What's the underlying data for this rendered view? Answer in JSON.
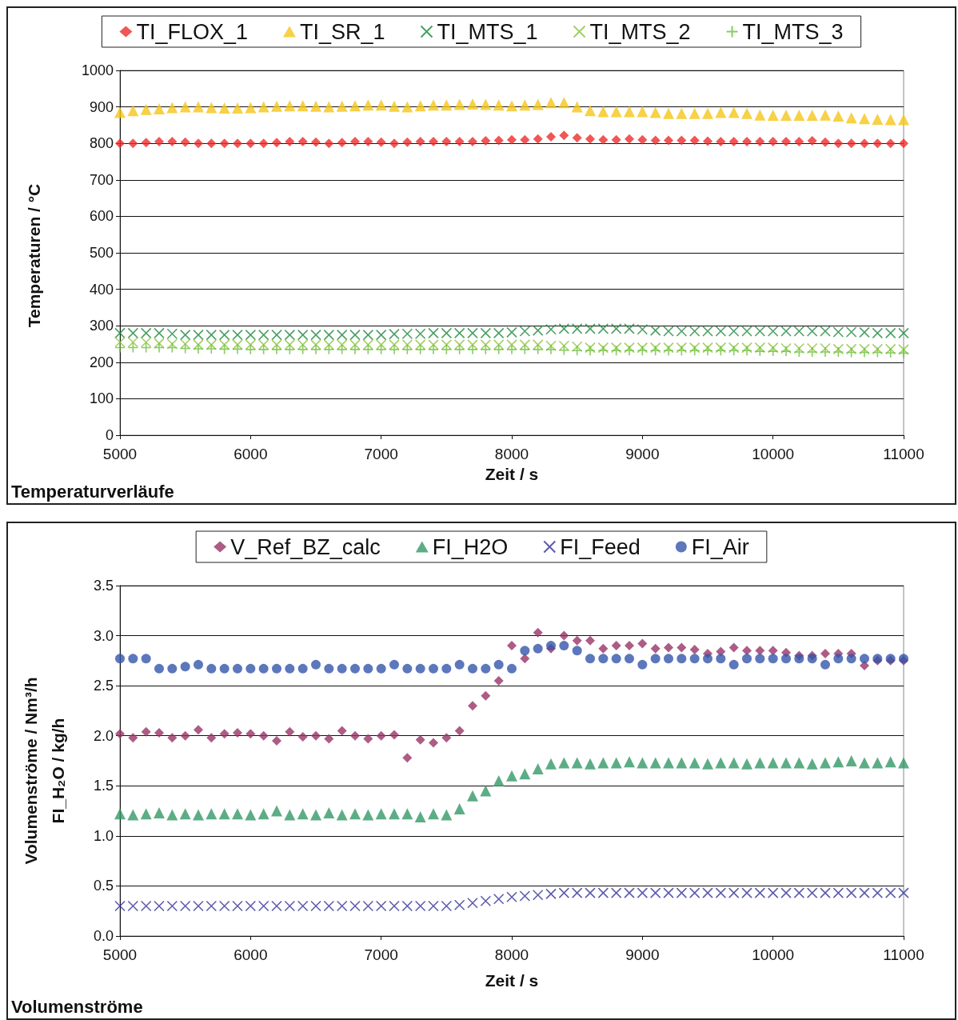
{
  "chart_data": [
    {
      "type": "scatter",
      "xlabel": "Zeit / s",
      "ylabel": "Temperaturen / °C",
      "annotations": [
        "Temperaturverläufe"
      ],
      "legend": "top",
      "grid": "y",
      "xlim": [
        5000,
        11000
      ],
      "xticks": [
        5000,
        6000,
        7000,
        8000,
        9000,
        10000,
        11000
      ],
      "ylim": [
        0,
        1000
      ],
      "yticks": [
        0,
        100,
        200,
        300,
        400,
        500,
        600,
        700,
        800,
        900,
        1000
      ],
      "x": [
        5000,
        5100,
        5200,
        5300,
        5400,
        5500,
        5600,
        5700,
        5800,
        5900,
        6000,
        6100,
        6200,
        6300,
        6400,
        6500,
        6600,
        6700,
        6800,
        6900,
        7000,
        7100,
        7200,
        7300,
        7400,
        7500,
        7600,
        7700,
        7800,
        7900,
        8000,
        8100,
        8200,
        8300,
        8400,
        8500,
        8600,
        8700,
        8800,
        8900,
        9000,
        9100,
        9200,
        9300,
        9400,
        9500,
        9600,
        9700,
        9800,
        9900,
        10000,
        10100,
        10200,
        10300,
        10400,
        10500,
        10600,
        10700,
        10800,
        10900,
        11000
      ],
      "series": [
        {
          "name": "TI_FLOX_1",
          "color": "#ee2c2c",
          "marker": "diamond",
          "values": [
            800,
            800,
            802,
            805,
            805,
            803,
            800,
            800,
            800,
            800,
            800,
            800,
            802,
            805,
            805,
            803,
            800,
            802,
            805,
            805,
            803,
            800,
            803,
            805,
            805,
            805,
            805,
            805,
            807,
            808,
            810,
            810,
            812,
            818,
            822,
            815,
            812,
            810,
            810,
            812,
            810,
            808,
            808,
            808,
            808,
            806,
            805,
            805,
            805,
            805,
            805,
            805,
            805,
            807,
            803,
            800,
            800,
            800,
            800,
            800,
            800
          ]
        },
        {
          "name": "TI_SR_1",
          "color": "#f5c518",
          "marker": "triangle",
          "values": [
            885,
            890,
            893,
            895,
            898,
            900,
            900,
            898,
            897,
            897,
            898,
            900,
            902,
            903,
            903,
            902,
            900,
            902,
            903,
            905,
            905,
            902,
            900,
            903,
            905,
            905,
            907,
            908,
            907,
            905,
            903,
            905,
            907,
            912,
            912,
            900,
            890,
            887,
            887,
            887,
            887,
            885,
            882,
            882,
            882,
            882,
            885,
            885,
            882,
            878,
            877,
            877,
            877,
            877,
            878,
            875,
            870,
            868,
            866,
            865,
            865
          ]
        },
        {
          "name": "TI_MTS_1",
          "color": "#1e8a3c",
          "marker": "cross",
          "values": [
            280,
            280,
            280,
            280,
            278,
            275,
            275,
            275,
            275,
            275,
            275,
            275,
            275,
            275,
            275,
            275,
            275,
            275,
            275,
            275,
            275,
            277,
            278,
            278,
            280,
            280,
            280,
            280,
            280,
            280,
            282,
            285,
            287,
            290,
            292,
            292,
            292,
            292,
            292,
            292,
            290,
            287,
            285,
            285,
            285,
            285,
            285,
            285,
            285,
            285,
            285,
            285,
            285,
            285,
            285,
            283,
            283,
            282,
            280,
            280,
            280
          ]
        },
        {
          "name": "TI_MTS_2",
          "color": "#8cc43c",
          "marker": "cross",
          "values": [
            255,
            255,
            255,
            252,
            250,
            250,
            248,
            248,
            248,
            248,
            248,
            248,
            248,
            248,
            248,
            248,
            248,
            248,
            248,
            248,
            248,
            248,
            248,
            248,
            248,
            248,
            248,
            248,
            248,
            248,
            248,
            248,
            248,
            245,
            245,
            243,
            240,
            240,
            240,
            240,
            240,
            240,
            240,
            240,
            240,
            240,
            240,
            240,
            240,
            240,
            240,
            238,
            238,
            238,
            238,
            236,
            236,
            236,
            236,
            236,
            235
          ]
        },
        {
          "name": "TI_MTS_3",
          "color": "#6cbf3c",
          "marker": "plus",
          "values": [
            240,
            240,
            240,
            240,
            240,
            238,
            237,
            237,
            236,
            236,
            235,
            235,
            235,
            235,
            235,
            235,
            235,
            235,
            235,
            235,
            235,
            235,
            235,
            235,
            235,
            235,
            235,
            235,
            235,
            235,
            235,
            235,
            235,
            235,
            233,
            232,
            232,
            232,
            232,
            232,
            232,
            232,
            232,
            232,
            232,
            232,
            232,
            232,
            232,
            230,
            230,
            230,
            228,
            228,
            228,
            228,
            227,
            227,
            227,
            226,
            225
          ]
        }
      ]
    },
    {
      "type": "scatter",
      "xlabel": "Zeit / s",
      "ylabel": "Volumenströme / Nm³/h\nFI_H₂O / kg/h",
      "annotations": [
        "Volumenströme"
      ],
      "legend": "top",
      "grid": "y",
      "xlim": [
        5000,
        11000
      ],
      "xticks": [
        5000,
        6000,
        7000,
        8000,
        9000,
        10000,
        11000
      ],
      "ylim": [
        0,
        3.5
      ],
      "yticks": [
        {
          "value": 0,
          "label": "0.0"
        },
        {
          "value": 0.5,
          "label": "0.5"
        },
        {
          "value": 1,
          "label": "1.0"
        },
        {
          "value": 1.5,
          "label": "1.5"
        },
        {
          "value": 2,
          "label": "2.0"
        },
        {
          "value": 2.5,
          "label": "2.5"
        },
        {
          "value": 3,
          "label": "3.0"
        },
        {
          "value": 3.5,
          "label": "3.5"
        }
      ],
      "x": [
        5000,
        5100,
        5200,
        5300,
        5400,
        5500,
        5600,
        5700,
        5800,
        5900,
        6000,
        6100,
        6200,
        6300,
        6400,
        6500,
        6600,
        6700,
        6800,
        6900,
        7000,
        7100,
        7200,
        7300,
        7400,
        7500,
        7600,
        7700,
        7800,
        7900,
        8000,
        8100,
        8200,
        8300,
        8400,
        8500,
        8600,
        8700,
        8800,
        8900,
        9000,
        9100,
        9200,
        9300,
        9400,
        9500,
        9600,
        9700,
        9800,
        9900,
        10000,
        10100,
        10200,
        10300,
        10400,
        10500,
        10600,
        10700,
        10800,
        10900,
        11000
      ],
      "series": [
        {
          "name": "V_Ref_BZ_calc",
          "color": "#993366",
          "marker": "diamond",
          "values": [
            2.02,
            1.98,
            2.04,
            2.03,
            1.98,
            2.0,
            2.06,
            1.98,
            2.02,
            2.03,
            2.02,
            2.0,
            1.95,
            2.04,
            1.99,
            2.0,
            1.97,
            2.05,
            2.0,
            1.97,
            2.0,
            2.01,
            1.78,
            1.96,
            1.93,
            1.98,
            2.05,
            2.3,
            2.4,
            2.55,
            2.9,
            2.77,
            3.03,
            2.87,
            3.0,
            2.95,
            2.95,
            2.87,
            2.9,
            2.9,
            2.92,
            2.87,
            2.88,
            2.88,
            2.86,
            2.82,
            2.84,
            2.88,
            2.85,
            2.85,
            2.85,
            2.83,
            2.8,
            2.8,
            2.82,
            2.82,
            2.82,
            2.7,
            2.75,
            2.75,
            2.75
          ]
        },
        {
          "name": "FI_H2O",
          "color": "#339966",
          "marker": "triangle",
          "values": [
            1.22,
            1.21,
            1.22,
            1.23,
            1.21,
            1.22,
            1.21,
            1.22,
            1.22,
            1.22,
            1.21,
            1.22,
            1.25,
            1.21,
            1.22,
            1.21,
            1.23,
            1.21,
            1.22,
            1.21,
            1.22,
            1.22,
            1.22,
            1.19,
            1.22,
            1.21,
            1.27,
            1.4,
            1.45,
            1.55,
            1.6,
            1.62,
            1.67,
            1.72,
            1.73,
            1.73,
            1.72,
            1.73,
            1.73,
            1.74,
            1.73,
            1.73,
            1.73,
            1.73,
            1.73,
            1.72,
            1.73,
            1.73,
            1.72,
            1.73,
            1.73,
            1.73,
            1.73,
            1.72,
            1.73,
            1.74,
            1.75,
            1.73,
            1.73,
            1.74,
            1.73
          ]
        },
        {
          "name": "FI_Feed",
          "color": "#333399",
          "marker": "cross",
          "values": [
            0.3,
            0.3,
            0.3,
            0.3,
            0.3,
            0.3,
            0.3,
            0.3,
            0.3,
            0.3,
            0.3,
            0.3,
            0.3,
            0.3,
            0.3,
            0.3,
            0.3,
            0.3,
            0.3,
            0.3,
            0.3,
            0.3,
            0.3,
            0.3,
            0.3,
            0.3,
            0.31,
            0.33,
            0.35,
            0.37,
            0.39,
            0.4,
            0.41,
            0.42,
            0.43,
            0.43,
            0.43,
            0.43,
            0.43,
            0.43,
            0.43,
            0.43,
            0.43,
            0.43,
            0.43,
            0.43,
            0.43,
            0.43,
            0.43,
            0.43,
            0.43,
            0.43,
            0.43,
            0.43,
            0.43,
            0.43,
            0.43,
            0.43,
            0.43,
            0.43,
            0.43
          ]
        },
        {
          "name": "FI_Air",
          "color": "#3355aa",
          "marker": "circle",
          "values": [
            2.77,
            2.77,
            2.77,
            2.67,
            2.67,
            2.69,
            2.71,
            2.67,
            2.67,
            2.67,
            2.67,
            2.67,
            2.67,
            2.67,
            2.67,
            2.71,
            2.67,
            2.67,
            2.67,
            2.67,
            2.67,
            2.71,
            2.67,
            2.67,
            2.67,
            2.67,
            2.71,
            2.67,
            2.67,
            2.71,
            2.67,
            2.85,
            2.87,
            2.9,
            2.9,
            2.85,
            2.77,
            2.77,
            2.77,
            2.77,
            2.71,
            2.77,
            2.77,
            2.77,
            2.77,
            2.77,
            2.77,
            2.71,
            2.77,
            2.77,
            2.77,
            2.77,
            2.77,
            2.77,
            2.71,
            2.77,
            2.77,
            2.77,
            2.77,
            2.77,
            2.77
          ]
        }
      ]
    }
  ]
}
